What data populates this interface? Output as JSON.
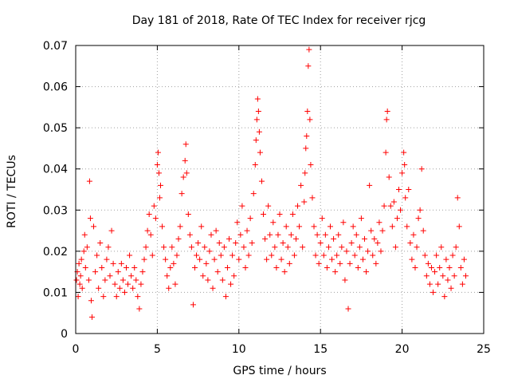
{
  "chart_data": {
    "type": "scatter",
    "title": "Day 181 of 2018, Rate Of TEC Index for receiver rjcg",
    "xlabel": "GPS time / hours",
    "ylabel": "ROTI / TECUs",
    "xlim": [
      0,
      25
    ],
    "ylim": [
      0,
      0.07
    ],
    "xticks": [
      0,
      5,
      10,
      15,
      20,
      25
    ],
    "yticks": [
      0,
      0.01,
      0.02,
      0.03,
      0.04,
      0.05,
      0.06,
      0.07
    ],
    "xtick_labels": [
      "0",
      "5",
      "10",
      "15",
      "20",
      "25"
    ],
    "ytick_labels": [
      "0",
      "0.01",
      "0.02",
      "0.03",
      "0.04",
      "0.05",
      "0.06",
      "0.07"
    ],
    "grid": true,
    "marker": "+",
    "color": "#ff0000",
    "series": [
      {
        "name": "ROTI",
        "points": [
          [
            0.05,
            0.013
          ],
          [
            0.1,
            0.015
          ],
          [
            0.15,
            0.009
          ],
          [
            0.2,
            0.017
          ],
          [
            0.25,
            0.012
          ],
          [
            0.3,
            0.014
          ],
          [
            0.35,
            0.018
          ],
          [
            0.4,
            0.011
          ],
          [
            0.5,
            0.02
          ],
          [
            0.55,
            0.024
          ],
          [
            0.6,
            0.016
          ],
          [
            0.7,
            0.021
          ],
          [
            0.8,
            0.013
          ],
          [
            0.85,
            0.037
          ],
          [
            0.9,
            0.028
          ],
          [
            0.95,
            0.008
          ],
          [
            1.0,
            0.004
          ],
          [
            1.1,
            0.026
          ],
          [
            1.2,
            0.015
          ],
          [
            1.3,
            0.019
          ],
          [
            1.4,
            0.011
          ],
          [
            1.5,
            0.022
          ],
          [
            1.6,
            0.016
          ],
          [
            1.7,
            0.009
          ],
          [
            1.8,
            0.013
          ],
          [
            1.9,
            0.018
          ],
          [
            2.0,
            0.021
          ],
          [
            2.1,
            0.014
          ],
          [
            2.2,
            0.025
          ],
          [
            2.3,
            0.017
          ],
          [
            2.4,
            0.012
          ],
          [
            2.5,
            0.009
          ],
          [
            2.6,
            0.015
          ],
          [
            2.7,
            0.011
          ],
          [
            2.8,
            0.017
          ],
          [
            2.9,
            0.013
          ],
          [
            3.0,
            0.01
          ],
          [
            3.1,
            0.016
          ],
          [
            3.2,
            0.012
          ],
          [
            3.3,
            0.019
          ],
          [
            3.4,
            0.014
          ],
          [
            3.5,
            0.011
          ],
          [
            3.6,
            0.016
          ],
          [
            3.7,
            0.013
          ],
          [
            3.8,
            0.009
          ],
          [
            3.9,
            0.006
          ],
          [
            4.0,
            0.012
          ],
          [
            4.1,
            0.015
          ],
          [
            4.2,
            0.018
          ],
          [
            4.3,
            0.021
          ],
          [
            4.4,
            0.025
          ],
          [
            4.5,
            0.029
          ],
          [
            4.6,
            0.024
          ],
          [
            4.7,
            0.019
          ],
          [
            4.8,
            0.031
          ],
          [
            4.9,
            0.028
          ],
          [
            5.0,
            0.041
          ],
          [
            5.05,
            0.044
          ],
          [
            5.1,
            0.039
          ],
          [
            5.15,
            0.033
          ],
          [
            5.2,
            0.036
          ],
          [
            5.3,
            0.026
          ],
          [
            5.4,
            0.021
          ],
          [
            5.5,
            0.018
          ],
          [
            5.6,
            0.014
          ],
          [
            5.7,
            0.011
          ],
          [
            5.8,
            0.016
          ],
          [
            5.9,
            0.021
          ],
          [
            6.0,
            0.017
          ],
          [
            6.1,
            0.012
          ],
          [
            6.2,
            0.019
          ],
          [
            6.3,
            0.023
          ],
          [
            6.4,
            0.026
          ],
          [
            6.5,
            0.034
          ],
          [
            6.6,
            0.038
          ],
          [
            6.7,
            0.042
          ],
          [
            6.75,
            0.046
          ],
          [
            6.8,
            0.039
          ],
          [
            6.9,
            0.029
          ],
          [
            7.0,
            0.024
          ],
          [
            7.1,
            0.021
          ],
          [
            7.2,
            0.007
          ],
          [
            7.3,
            0.016
          ],
          [
            7.4,
            0.019
          ],
          [
            7.5,
            0.022
          ],
          [
            7.6,
            0.018
          ],
          [
            7.7,
            0.026
          ],
          [
            7.8,
            0.014
          ],
          [
            7.9,
            0.021
          ],
          [
            8.0,
            0.017
          ],
          [
            8.1,
            0.013
          ],
          [
            8.2,
            0.02
          ],
          [
            8.3,
            0.024
          ],
          [
            8.4,
            0.011
          ],
          [
            8.5,
            0.018
          ],
          [
            8.6,
            0.025
          ],
          [
            8.7,
            0.015
          ],
          [
            8.8,
            0.022
          ],
          [
            8.9,
            0.019
          ],
          [
            9.0,
            0.013
          ],
          [
            9.1,
            0.021
          ],
          [
            9.2,
            0.009
          ],
          [
            9.3,
            0.016
          ],
          [
            9.4,
            0.023
          ],
          [
            9.5,
            0.012
          ],
          [
            9.6,
            0.019
          ],
          [
            9.7,
            0.014
          ],
          [
            9.8,
            0.022
          ],
          [
            9.9,
            0.027
          ],
          [
            10.0,
            0.018
          ],
          [
            10.1,
            0.024
          ],
          [
            10.2,
            0.031
          ],
          [
            10.3,
            0.021
          ],
          [
            10.4,
            0.016
          ],
          [
            10.5,
            0.025
          ],
          [
            10.6,
            0.019
          ],
          [
            10.7,
            0.028
          ],
          [
            10.8,
            0.022
          ],
          [
            10.9,
            0.034
          ],
          [
            11.0,
            0.041
          ],
          [
            11.05,
            0.047
          ],
          [
            11.1,
            0.052
          ],
          [
            11.15,
            0.057
          ],
          [
            11.2,
            0.054
          ],
          [
            11.25,
            0.049
          ],
          [
            11.3,
            0.044
          ],
          [
            11.4,
            0.037
          ],
          [
            11.5,
            0.029
          ],
          [
            11.6,
            0.023
          ],
          [
            11.7,
            0.018
          ],
          [
            11.8,
            0.031
          ],
          [
            11.9,
            0.024
          ],
          [
            12.0,
            0.019
          ],
          [
            12.1,
            0.027
          ],
          [
            12.2,
            0.021
          ],
          [
            12.3,
            0.016
          ],
          [
            12.4,
            0.024
          ],
          [
            12.5,
            0.029
          ],
          [
            12.6,
            0.018
          ],
          [
            12.7,
            0.022
          ],
          [
            12.8,
            0.015
          ],
          [
            12.9,
            0.026
          ],
          [
            13.0,
            0.021
          ],
          [
            13.1,
            0.017
          ],
          [
            13.2,
            0.024
          ],
          [
            13.3,
            0.029
          ],
          [
            13.4,
            0.019
          ],
          [
            13.5,
            0.023
          ],
          [
            13.6,
            0.031
          ],
          [
            13.7,
            0.026
          ],
          [
            13.8,
            0.036
          ],
          [
            13.9,
            0.021
          ],
          [
            14.0,
            0.032
          ],
          [
            14.05,
            0.039
          ],
          [
            14.1,
            0.045
          ],
          [
            14.15,
            0.048
          ],
          [
            14.2,
            0.054
          ],
          [
            14.25,
            0.065
          ],
          [
            14.3,
            0.069
          ],
          [
            14.35,
            0.052
          ],
          [
            14.4,
            0.041
          ],
          [
            14.5,
            0.033
          ],
          [
            14.6,
            0.026
          ],
          [
            14.7,
            0.019
          ],
          [
            14.8,
            0.024
          ],
          [
            14.9,
            0.017
          ],
          [
            15.0,
            0.022
          ],
          [
            15.1,
            0.028
          ],
          [
            15.2,
            0.019
          ],
          [
            15.3,
            0.024
          ],
          [
            15.4,
            0.016
          ],
          [
            15.5,
            0.021
          ],
          [
            15.6,
            0.026
          ],
          [
            15.7,
            0.018
          ],
          [
            15.8,
            0.023
          ],
          [
            15.9,
            0.015
          ],
          [
            16.0,
            0.019
          ],
          [
            16.1,
            0.024
          ],
          [
            16.2,
            0.017
          ],
          [
            16.3,
            0.021
          ],
          [
            16.4,
            0.027
          ],
          [
            16.5,
            0.013
          ],
          [
            16.6,
            0.02
          ],
          [
            16.7,
            0.006
          ],
          [
            16.8,
            0.017
          ],
          [
            16.9,
            0.022
          ],
          [
            17.0,
            0.026
          ],
          [
            17.1,
            0.019
          ],
          [
            17.2,
            0.024
          ],
          [
            17.3,
            0.016
          ],
          [
            17.4,
            0.021
          ],
          [
            17.5,
            0.028
          ],
          [
            17.6,
            0.018
          ],
          [
            17.7,
            0.023
          ],
          [
            17.8,
            0.015
          ],
          [
            17.9,
            0.02
          ],
          [
            18.0,
            0.036
          ],
          [
            18.1,
            0.025
          ],
          [
            18.2,
            0.019
          ],
          [
            18.3,
            0.023
          ],
          [
            18.4,
            0.017
          ],
          [
            18.5,
            0.022
          ],
          [
            18.6,
            0.027
          ],
          [
            18.7,
            0.02
          ],
          [
            18.8,
            0.025
          ],
          [
            18.9,
            0.031
          ],
          [
            19.0,
            0.044
          ],
          [
            19.05,
            0.052
          ],
          [
            19.1,
            0.054
          ],
          [
            19.2,
            0.038
          ],
          [
            19.3,
            0.031
          ],
          [
            19.4,
            0.026
          ],
          [
            19.5,
            0.032
          ],
          [
            19.6,
            0.021
          ],
          [
            19.7,
            0.028
          ],
          [
            19.8,
            0.035
          ],
          [
            19.9,
            0.03
          ],
          [
            20.0,
            0.039
          ],
          [
            20.1,
            0.044
          ],
          [
            20.15,
            0.041
          ],
          [
            20.2,
            0.033
          ],
          [
            20.3,
            0.026
          ],
          [
            20.4,
            0.035
          ],
          [
            20.5,
            0.022
          ],
          [
            20.6,
            0.018
          ],
          [
            20.7,
            0.024
          ],
          [
            20.8,
            0.016
          ],
          [
            20.9,
            0.021
          ],
          [
            21.0,
            0.028
          ],
          [
            21.1,
            0.03
          ],
          [
            21.2,
            0.04
          ],
          [
            21.3,
            0.025
          ],
          [
            21.4,
            0.019
          ],
          [
            21.5,
            0.014
          ],
          [
            21.6,
            0.017
          ],
          [
            21.7,
            0.012
          ],
          [
            21.8,
            0.016
          ],
          [
            21.9,
            0.01
          ],
          [
            22.0,
            0.015
          ],
          [
            22.1,
            0.019
          ],
          [
            22.2,
            0.012
          ],
          [
            22.3,
            0.016
          ],
          [
            22.4,
            0.021
          ],
          [
            22.5,
            0.014
          ],
          [
            22.6,
            0.009
          ],
          [
            22.7,
            0.018
          ],
          [
            22.8,
            0.013
          ],
          [
            22.9,
            0.016
          ],
          [
            23.0,
            0.011
          ],
          [
            23.1,
            0.019
          ],
          [
            23.2,
            0.014
          ],
          [
            23.3,
            0.021
          ],
          [
            23.4,
            0.033
          ],
          [
            23.5,
            0.026
          ],
          [
            23.6,
            0.016
          ],
          [
            23.7,
            0.012
          ],
          [
            23.8,
            0.018
          ],
          [
            23.9,
            0.014
          ]
        ]
      }
    ]
  }
}
